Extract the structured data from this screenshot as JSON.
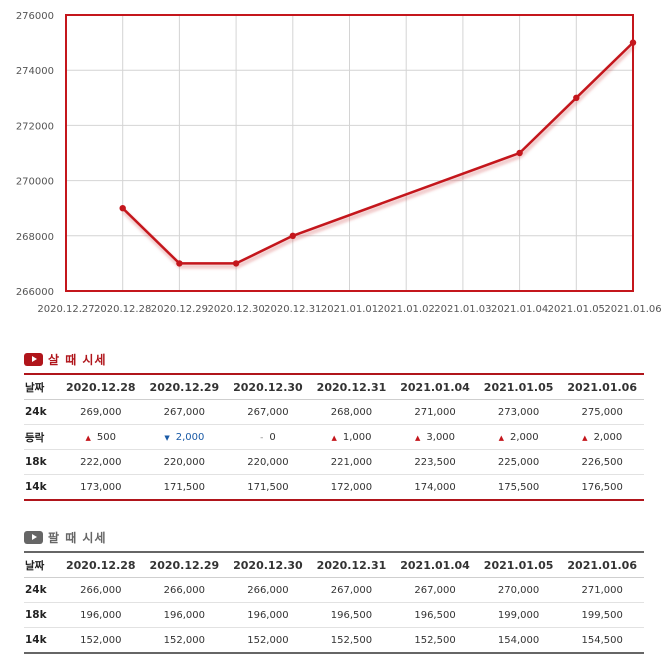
{
  "colors": {
    "line": "#c4161c",
    "frame": "#c4161c",
    "grid": "#d4d4d4",
    "buy_accent": "#b0151b",
    "sell_accent": "#666666",
    "up": "#c4161c",
    "down": "#1a5aa6"
  },
  "chart_data": {
    "type": "line",
    "x": [
      "2020.12.27",
      "2020.12.28",
      "2020.12.29",
      "2020.12.30",
      "2020.12.31",
      "2021.01.01",
      "2021.01.02",
      "2021.01.03",
      "2021.01.04",
      "2021.01.05",
      "2021.01.06"
    ],
    "series": [
      {
        "x": [
          "2020.12.28",
          "2020.12.29",
          "2020.12.30",
          "2020.12.31",
          "2021.01.04",
          "2021.01.05",
          "2021.01.06"
        ],
        "values": [
          269000,
          267000,
          267000,
          268000,
          271000,
          273000,
          275000
        ]
      }
    ],
    "yticks": [
      "266000",
      "268000",
      "270000",
      "272000",
      "274000",
      "276000"
    ],
    "ylim": [
      266000,
      276000
    ],
    "grid": true,
    "legend": "none"
  },
  "buy": {
    "title": "살 때 시세",
    "header": [
      "날짜",
      "2020.12.28",
      "2020.12.29",
      "2020.12.30",
      "2020.12.31",
      "2021.01.04",
      "2021.01.05",
      "2021.01.06"
    ],
    "rows": [
      {
        "label": "24k",
        "cells": [
          {
            "v": "269,000"
          },
          {
            "v": "267,000"
          },
          {
            "v": "267,000"
          },
          {
            "v": "268,000"
          },
          {
            "v": "271,000"
          },
          {
            "v": "273,000"
          },
          {
            "v": "275,000"
          }
        ]
      },
      {
        "label": "등락",
        "cells": [
          {
            "icon": "up",
            "v": "500"
          },
          {
            "icon": "down",
            "v": "2,000"
          },
          {
            "icon": "flat",
            "v": "0"
          },
          {
            "icon": "up",
            "v": "1,000"
          },
          {
            "icon": "up",
            "v": "3,000"
          },
          {
            "icon": "up",
            "v": "2,000"
          },
          {
            "icon": "up",
            "v": "2,000"
          }
        ]
      },
      {
        "label": "18k",
        "cells": [
          {
            "v": "222,000"
          },
          {
            "v": "220,000"
          },
          {
            "v": "220,000"
          },
          {
            "v": "221,000"
          },
          {
            "v": "223,500"
          },
          {
            "v": "225,000"
          },
          {
            "v": "226,500"
          }
        ]
      },
      {
        "label": "14k",
        "cells": [
          {
            "v": "173,000"
          },
          {
            "v": "171,500"
          },
          {
            "v": "171,500"
          },
          {
            "v": "172,000"
          },
          {
            "v": "174,000"
          },
          {
            "v": "175,500"
          },
          {
            "v": "176,500"
          }
        ]
      }
    ]
  },
  "sell": {
    "title": "팔 때 시세",
    "header": [
      "날짜",
      "2020.12.28",
      "2020.12.29",
      "2020.12.30",
      "2020.12.31",
      "2021.01.04",
      "2021.01.05",
      "2021.01.06"
    ],
    "rows": [
      {
        "label": "24k",
        "cells": [
          {
            "v": "266,000"
          },
          {
            "v": "266,000"
          },
          {
            "v": "266,000"
          },
          {
            "v": "267,000"
          },
          {
            "v": "267,000"
          },
          {
            "v": "270,000"
          },
          {
            "v": "271,000"
          }
        ]
      },
      {
        "label": "18k",
        "cells": [
          {
            "v": "196,000"
          },
          {
            "v": "196,000"
          },
          {
            "v": "196,000"
          },
          {
            "v": "196,500"
          },
          {
            "v": "196,500"
          },
          {
            "v": "199,000"
          },
          {
            "v": "199,500"
          }
        ]
      },
      {
        "label": "14k",
        "cells": [
          {
            "v": "152,000"
          },
          {
            "v": "152,000"
          },
          {
            "v": "152,000"
          },
          {
            "v": "152,500"
          },
          {
            "v": "152,500"
          },
          {
            "v": "154,000"
          },
          {
            "v": "154,500"
          }
        ]
      }
    ]
  }
}
